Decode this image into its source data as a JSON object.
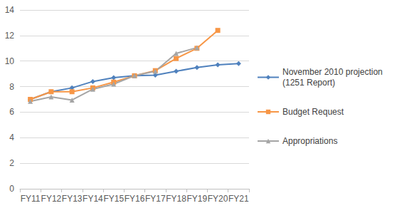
{
  "chart_data": {
    "type": "line",
    "categories": [
      "FY11",
      "FY12",
      "FY13",
      "FY14",
      "FY15",
      "FY16",
      "FY17",
      "FY18",
      "FY19",
      "FY20",
      "FY21"
    ],
    "series": [
      {
        "name": "November 2010 projection (1251 Report)",
        "color": "#4f81bd",
        "marker": "diamond",
        "line_style": "solid",
        "values": [
          7.0,
          7.6,
          7.9,
          8.4,
          8.7,
          8.85,
          8.9,
          9.2,
          9.5,
          9.7,
          9.8
        ]
      },
      {
        "name": "Budget Request",
        "color": "#f79646",
        "marker": "square",
        "line_style": "solid",
        "values": [
          7.0,
          7.6,
          7.6,
          7.9,
          8.35,
          8.85,
          9.25,
          10.2,
          11.0,
          12.4,
          null
        ]
      },
      {
        "name": "Appropriations",
        "color": "#a5a5a5",
        "marker": "triangle",
        "line_style": "solid",
        "values": [
          6.85,
          7.2,
          6.95,
          7.8,
          8.2,
          8.85,
          9.2,
          10.6,
          11.05,
          null,
          null
        ]
      }
    ],
    "ylim": [
      0,
      14
    ],
    "yticks": [
      0,
      2,
      4,
      6,
      8,
      10,
      12,
      14
    ],
    "grid": true,
    "legend": "right"
  }
}
